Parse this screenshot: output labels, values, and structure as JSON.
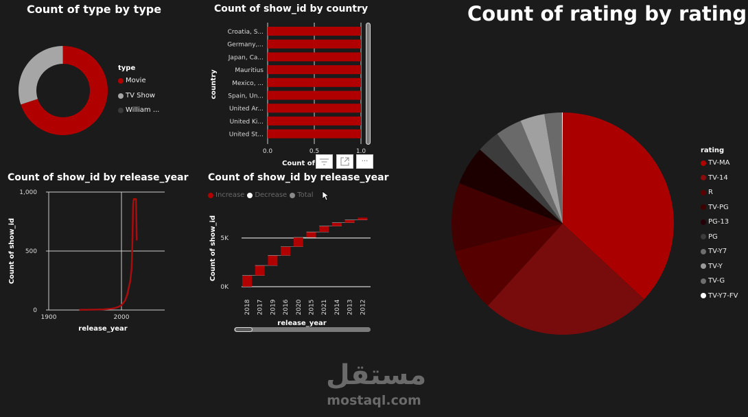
{
  "colors": {
    "background": "#1b1b1b",
    "primary_red": "#b00000",
    "grid": "#cfcfcf"
  },
  "toolbar": {
    "filter_icon": "filter-icon",
    "focus_icon": "focus-mode-icon",
    "more_icon": "more-options-icon",
    "more_label": "···"
  },
  "watermark": {
    "arabic": "مستقل",
    "latin": "mostaql.com"
  },
  "chart_data": [
    {
      "id": "type_donut",
      "type": "pie",
      "variant": "donut",
      "title": "Count of type by type",
      "legend_title": "type",
      "legend_position": "right",
      "categories": [
        "Movie",
        "TV Show",
        "William ..."
      ],
      "values": [
        70,
        30,
        0.1
      ],
      "colors": [
        "#b00000",
        "#a6a6a6",
        "#3a3a3a"
      ]
    },
    {
      "id": "country_bar",
      "type": "bar",
      "orientation": "horizontal",
      "title": "Count of show_id by country",
      "xlabel": "Count of show_id",
      "xlabel_visible": "Count of",
      "ylabel": "country",
      "categories": [
        "Croatia, S...",
        "Germany,...",
        "Japan, Ca...",
        "Mauritius",
        "Mexico, ...",
        "Spain, Un...",
        "United Ar...",
        "United Ki...",
        "United St..."
      ],
      "values": [
        1,
        1,
        1,
        1,
        1,
        1,
        1,
        1,
        1
      ],
      "xticks": [
        "0.0",
        "0.5",
        "1.0"
      ],
      "xlim": [
        0,
        1
      ],
      "grid": true,
      "color": "#b00000"
    },
    {
      "id": "release_year_line",
      "type": "line",
      "title": "Count of show_id by release_year",
      "xlabel": "release_year",
      "ylabel": "Count of show_id",
      "xticks": [
        "1900",
        "2000"
      ],
      "yticks": [
        "0",
        "500",
        "1,000"
      ],
      "xlim": [
        1895,
        2060
      ],
      "ylim": [
        0,
        1000
      ],
      "grid": true,
      "x": [
        1942,
        1960,
        1975,
        1985,
        1990,
        1995,
        2000,
        2005,
        2008,
        2010,
        2012,
        2014,
        2015,
        2016,
        2017,
        2018,
        2019,
        2020,
        2021
      ],
      "values": [
        1,
        3,
        5,
        10,
        15,
        25,
        40,
        80,
        130,
        190,
        240,
        350,
        560,
        900,
        1030,
        1150,
        1030,
        950,
        590
      ],
      "color": "#a80d0d"
    },
    {
      "id": "release_year_waterfall",
      "type": "bar",
      "variant": "waterfall",
      "title": "Count of show_id by release_year",
      "xlabel": "release_year",
      "ylabel": "Count of show_id",
      "legend": [
        {
          "label": "Increase",
          "color": "#b00000"
        },
        {
          "label": "Decrease",
          "color": "#ffffff"
        },
        {
          "label": "Total",
          "color": "#8a8a8a"
        }
      ],
      "categories": [
        "2018",
        "2017",
        "2019",
        "2016",
        "2020",
        "2015",
        "2021",
        "2014",
        "2013",
        "2012"
      ],
      "values": [
        1147,
        1032,
        1030,
        902,
        953,
        560,
        592,
        352,
        288,
        237
      ],
      "yticks": [
        "0K",
        "5K"
      ],
      "ylim": [
        0,
        6000
      ],
      "color": "#b00000"
    },
    {
      "id": "rating_pie",
      "type": "pie",
      "title": "Count of rating by rating",
      "legend_title": "rating",
      "legend_position": "right",
      "categories": [
        "TV-MA",
        "TV-14",
        "R",
        "TV-PG",
        "PG-13",
        "PG",
        "TV-Y7",
        "TV-Y",
        "TV-G",
        "TV-Y7-FV"
      ],
      "values": [
        36.4,
        24.5,
        9.1,
        9.8,
        5.6,
        3.3,
        3.8,
        3.5,
        2.5,
        0.1
      ],
      "colors": [
        "#aa0000",
        "#780c0c",
        "#560000",
        "#420000",
        "#1c0000",
        "#3c3c3c",
        "#6a6a6a",
        "#a0a0a0",
        "#6a6a6a",
        "#ffffff"
      ]
    }
  ]
}
